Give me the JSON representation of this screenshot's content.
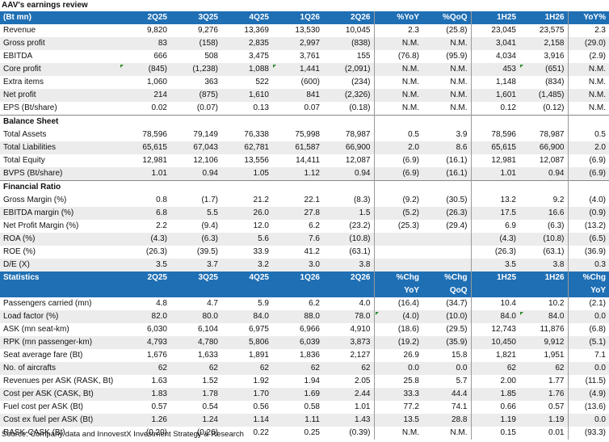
{
  "title": "AAV's earnings review",
  "source": "Source: Company data and InnovestX Investment Strategy & Research",
  "earnings": {
    "header": [
      "(Bt mn)",
      "2Q25",
      "3Q25",
      "4Q25",
      "1Q26",
      "2Q26",
      "%YoY",
      "%QoQ",
      "1H25",
      "1H26",
      "YoY%"
    ],
    "rows": [
      {
        "label": "Revenue",
        "v": [
          "9,820",
          "9,276",
          "13,369",
          "13,530",
          "10,045",
          "2.3",
          "(25.8)",
          "23,045",
          "23,575",
          "2.3"
        ]
      },
      {
        "label": "Gross profit",
        "v": [
          "83",
          "(158)",
          "2,835",
          "2,997",
          "(838)",
          "N.M.",
          "N.M.",
          "3,041",
          "2,158",
          "(29.0)"
        ]
      },
      {
        "label": "EBITDA",
        "v": [
          "666",
          "508",
          "3,475",
          "3,761",
          "155",
          "(76.8)",
          "(95.9)",
          "4,034",
          "3,916",
          "(2.9)"
        ]
      },
      {
        "label": "Core profit",
        "v": [
          "(845)",
          "(1,238)",
          "1,088",
          "1,441",
          "(2,091)",
          "N.M.",
          "N.M.",
          "453",
          "(651)",
          "N.M."
        ]
      },
      {
        "label": "Extra items",
        "v": [
          "1,060",
          "363",
          "522",
          "(600)",
          "(234)",
          "N.M.",
          "N.M.",
          "1,148",
          "(834)",
          "N.M."
        ]
      },
      {
        "label": "Net profit",
        "v": [
          "214",
          "(875)",
          "1,610",
          "841",
          "(2,326)",
          "N.M.",
          "N.M.",
          "1,601",
          "(1,485)",
          "N.M."
        ]
      },
      {
        "label": "EPS (Bt/share)",
        "v": [
          "0.02",
          "(0.07)",
          "0.13",
          "0.07",
          "(0.18)",
          "N.M.",
          "N.M.",
          "0.12",
          "(0.12)",
          "N.M."
        ]
      }
    ]
  },
  "balance_sheet": {
    "title": "Balance Sheet",
    "rows": [
      {
        "label": "Total Assets",
        "v": [
          "78,596",
          "79,149",
          "76,338",
          "75,998",
          "78,987",
          "0.5",
          "3.9",
          "78,596",
          "78,987",
          "0.5"
        ]
      },
      {
        "label": "Total Liabilities",
        "v": [
          "65,615",
          "67,043",
          "62,781",
          "61,587",
          "66,900",
          "2.0",
          "8.6",
          "65,615",
          "66,900",
          "2.0"
        ]
      },
      {
        "label": "Total Equity",
        "v": [
          "12,981",
          "12,106",
          "13,556",
          "14,411",
          "12,087",
          "(6.9)",
          "(16.1)",
          "12,981",
          "12,087",
          "(6.9)"
        ]
      },
      {
        "label": "BVPS (Bt/share)",
        "v": [
          "1.01",
          "0.94",
          "1.05",
          "1.12",
          "0.94",
          "(6.9)",
          "(16.1)",
          "1.01",
          "0.94",
          "(6.9)"
        ]
      }
    ]
  },
  "financial_ratio": {
    "title": "Financial Ratio",
    "rows": [
      {
        "label": "Gross Margin (%)",
        "v": [
          "0.8",
          "(1.7)",
          "21.2",
          "22.1",
          "(8.3)",
          "(9.2)",
          "(30.5)",
          "13.2",
          "9.2",
          "(4.0)"
        ]
      },
      {
        "label": "EBITDA margin (%)",
        "v": [
          "6.8",
          "5.5",
          "26.0",
          "27.8",
          "1.5",
          "(5.2)",
          "(26.3)",
          "17.5",
          "16.6",
          "(0.9)"
        ]
      },
      {
        "label": "Net Profit Margin (%)",
        "v": [
          "2.2",
          "(9.4)",
          "12.0",
          "6.2",
          "(23.2)",
          "(25.3)",
          "(29.4)",
          "6.9",
          "(6.3)",
          "(13.2)"
        ]
      },
      {
        "label": "ROA (%)",
        "v": [
          "(4.3)",
          "(6.3)",
          "5.6",
          "7.6",
          "(10.8)",
          "",
          "",
          "(4.3)",
          "(10.8)",
          "(6.5)"
        ]
      },
      {
        "label": "ROE (%)",
        "v": [
          "(26.3)",
          "(39.5)",
          "33.9",
          "41.2",
          "(63.1)",
          "",
          "",
          "(26.3)",
          "(63.1)",
          "(36.9)"
        ]
      },
      {
        "label": "D/E (X)",
        "v": [
          "3.5",
          "3.7",
          "3.2",
          "3.0",
          "3.8",
          "",
          "",
          "3.5",
          "3.8",
          "0.3"
        ]
      }
    ]
  },
  "statistics": {
    "header": [
      "Statistics",
      "2Q25",
      "3Q25",
      "4Q25",
      "1Q26",
      "2Q26",
      "%Chg",
      "%Chg",
      "1H25",
      "1H26",
      "%Chg"
    ],
    "subheader": [
      "YoY",
      "QoQ",
      "YoY"
    ],
    "rows": [
      {
        "label": "Passengers carried (mn)",
        "v": [
          "4.8",
          "4.7",
          "5.9",
          "6.2",
          "4.0",
          "(16.4)",
          "(34.7)",
          "10.4",
          "10.2",
          "(2.1)"
        ]
      },
      {
        "label": "Load factor (%)",
        "v": [
          "82.0",
          "80.0",
          "84.0",
          "88.0",
          "78.0",
          "(4.0)",
          "(10.0)",
          "84.0",
          "84.0",
          "0.0"
        ]
      },
      {
        "label": "ASK (mn seat-km)",
        "v": [
          "6,030",
          "6,104",
          "6,975",
          "6,966",
          "4,910",
          "(18.6)",
          "(29.5)",
          "12,743",
          "11,876",
          "(6.8)"
        ]
      },
      {
        "label": "RPK (mn passenger-km)",
        "v": [
          "4,793",
          "4,780",
          "5,806",
          "6,039",
          "3,873",
          "(19.2)",
          "(35.9)",
          "10,450",
          "9,912",
          "(5.1)"
        ]
      },
      {
        "label": "Seat average fare (Bt)",
        "v": [
          "1,676",
          "1,633",
          "1,891",
          "1,836",
          "2,127",
          "26.9",
          "15.8",
          "1,821",
          "1,951",
          "7.1"
        ]
      },
      {
        "label": "No. of aircrafts",
        "v": [
          "62",
          "62",
          "62",
          "62",
          "62",
          "0.0",
          "0.0",
          "62",
          "62",
          "0.0"
        ]
      },
      {
        "label": "Revenues per ASK (RASK, Bt)",
        "v": [
          "1.63",
          "1.52",
          "1.92",
          "1.94",
          "2.05",
          "25.8",
          "5.7",
          "2.00",
          "1.77",
          "(11.5)"
        ]
      },
      {
        "label": "Cost per ASK (CASK, Bt)",
        "v": [
          "1.83",
          "1.78",
          "1.70",
          "1.69",
          "2.44",
          "33.3",
          "44.4",
          "1.85",
          "1.76",
          "(4.9)"
        ]
      },
      {
        "label": "Fuel cost per ASK (Bt)",
        "v": [
          "0.57",
          "0.54",
          "0.56",
          "0.58",
          "1.01",
          "77.2",
          "74.1",
          "0.66",
          "0.57",
          "(13.6)"
        ]
      },
      {
        "label": "Cost ex fuel per ASK (Bt)",
        "v": [
          "1.26",
          "1.24",
          "1.14",
          "1.11",
          "1.43",
          "13.5",
          "28.8",
          "1.19",
          "1.19",
          "0.0"
        ]
      },
      {
        "label": "RASK-CASK (Bt)",
        "v": [
          "(0.20)",
          "(0.26)",
          "0.22",
          "0.25",
          "(0.39)",
          "N.M.",
          "N.M.",
          "0.15",
          "0.01",
          "(93.3)"
        ]
      }
    ]
  }
}
